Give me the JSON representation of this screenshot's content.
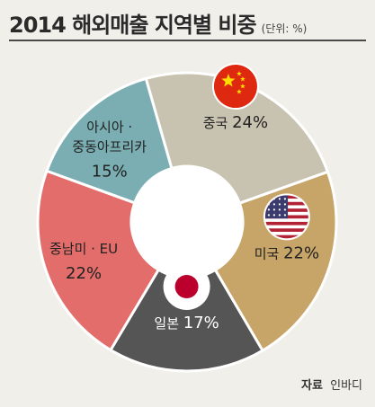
{
  "header": {
    "title": "2014 해외매출 지역별 비중",
    "unit": "(단위: %)"
  },
  "source": {
    "label": "자료",
    "name": "인바디"
  },
  "colors": {
    "china": "#c8c2b0",
    "usa": "#c7a468",
    "japan": "#555555",
    "southamerica_eu": "#e26d6a",
    "asia_africa": "#7aaeb2",
    "background": "#f1efe9",
    "center_hole": "#ffffff"
  },
  "chart_data": {
    "type": "pie",
    "title": "2014 해외매출 지역별 비중",
    "unit": "%",
    "donut": true,
    "slices": [
      {
        "label": "중국",
        "value": 24,
        "value_label": "24%",
        "color": "#c8c2b0",
        "icon": "china-flag-icon"
      },
      {
        "label": "미국",
        "value": 22,
        "value_label": "22%",
        "color": "#c7a468",
        "icon": "usa-flag-icon"
      },
      {
        "label": "일본",
        "value": 17,
        "value_label": "17%",
        "color": "#555555",
        "icon": "japan-flag-icon"
      },
      {
        "label": "중남미 · EU",
        "value": 22,
        "value_label": "22%",
        "color": "#e26d6a"
      },
      {
        "label": "아시아 · 중동아프리카",
        "value": 15,
        "value_label": "15%",
        "color": "#7aaeb2"
      }
    ]
  }
}
